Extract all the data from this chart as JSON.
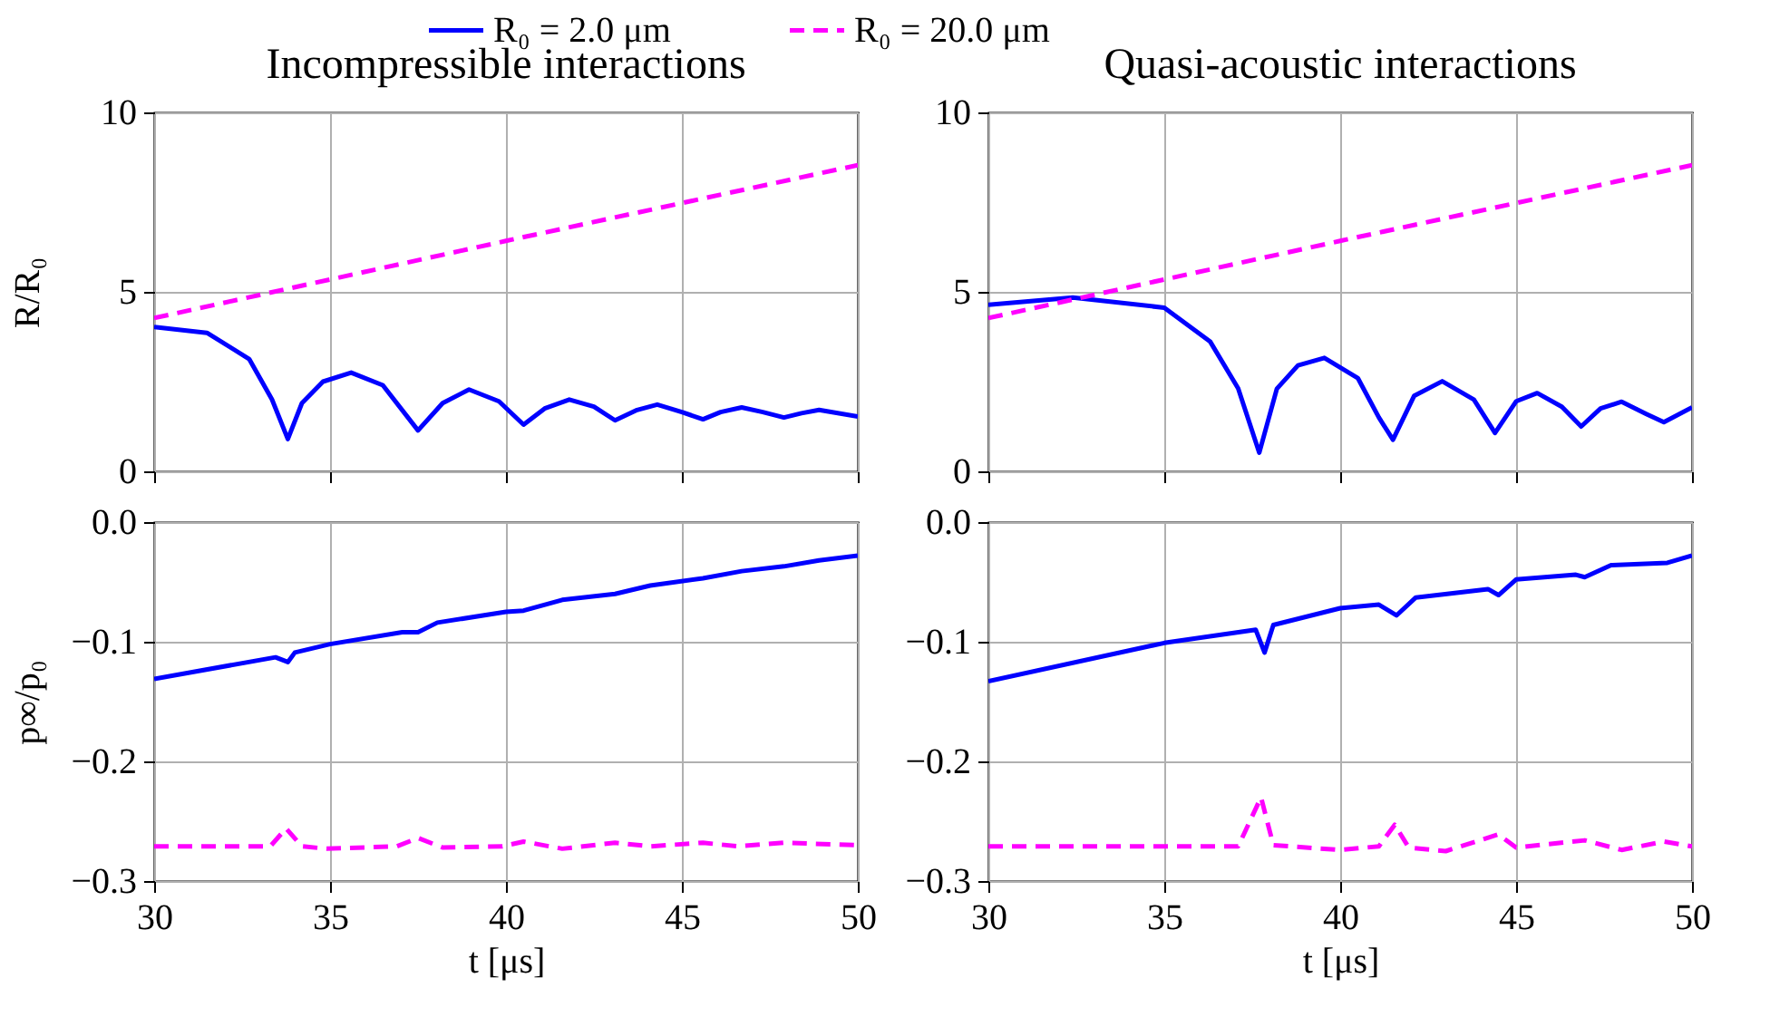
{
  "chart_data": [
    {
      "type": "line",
      "title": "Incompressible interactions",
      "ylabel": "R/R₀",
      "xlim": [
        30,
        50
      ],
      "xticks": [
        30,
        35,
        40,
        45,
        50
      ],
      "ylim": [
        0,
        10
      ],
      "yticks": [
        0,
        5,
        10
      ],
      "grid": true,
      "tick_labels": "y",
      "legend": "top",
      "series": [
        {
          "name": "R₀ = 2.0 μm",
          "color": "#0000ff",
          "line_style": "solid",
          "x": [
            30,
            31.5,
            32.7,
            33.35,
            33.8,
            34.2,
            34.8,
            35.6,
            36.5,
            37.5,
            38.2,
            38.95,
            39.8,
            40.5,
            41.1,
            41.8,
            42.5,
            43.1,
            43.7,
            44.3,
            45,
            45.6,
            46.1,
            46.7,
            47.3,
            47.9,
            48.4,
            48.9,
            50
          ],
          "values": [
            4.02,
            3.86,
            3.13,
            2.0,
            0.9,
            1.9,
            2.5,
            2.75,
            2.4,
            1.14,
            1.9,
            2.28,
            1.95,
            1.3,
            1.75,
            2.0,
            1.8,
            1.42,
            1.7,
            1.86,
            1.65,
            1.45,
            1.65,
            1.78,
            1.65,
            1.5,
            1.62,
            1.71,
            1.53
          ]
        },
        {
          "name": "R₀ = 20.0 μm",
          "color": "#ff00ff",
          "line_style": "dashed",
          "x": [
            30,
            40,
            50
          ],
          "values": [
            4.27,
            6.42,
            8.53
          ]
        }
      ]
    },
    {
      "type": "line",
      "title": "Quasi-acoustic interactions",
      "xlim": [
        30,
        50
      ],
      "xticks": [
        30,
        35,
        40,
        45,
        50
      ],
      "ylim": [
        0,
        10
      ],
      "yticks": [
        0,
        5,
        10
      ],
      "grid": true,
      "tick_labels": "y",
      "series": [
        {
          "name": "R₀ = 2.0 μm",
          "color": "#0000ff",
          "line_style": "solid",
          "x": [
            30,
            32.4,
            35,
            36.3,
            37.1,
            37.7,
            38.2,
            38.8,
            39.55,
            40.5,
            41.1,
            41.5,
            42.1,
            42.9,
            43.8,
            44.4,
            45,
            45.6,
            46.3,
            46.85,
            47.4,
            48.0,
            48.7,
            49.2,
            50
          ],
          "values": [
            4.64,
            4.84,
            4.56,
            3.62,
            2.31,
            0.52,
            2.3,
            2.95,
            3.16,
            2.6,
            1.5,
            0.88,
            2.1,
            2.51,
            2.0,
            1.07,
            1.95,
            2.18,
            1.8,
            1.25,
            1.75,
            1.94,
            1.6,
            1.37,
            1.78
          ]
        },
        {
          "name": "R₀ = 20.0 μm",
          "color": "#ff00ff",
          "line_style": "dashed",
          "x": [
            30,
            40,
            50
          ],
          "values": [
            4.27,
            6.42,
            8.53
          ]
        }
      ]
    },
    {
      "type": "line",
      "xlabel": "t [μs]",
      "ylabel": "p∞/p₀",
      "xlim": [
        30,
        50
      ],
      "xticks": [
        30,
        35,
        40,
        45,
        50
      ],
      "ylim": [
        -0.3,
        0
      ],
      "yticks": [
        {
          "value": -0.3,
          "label": "−0.3"
        },
        {
          "value": -0.2,
          "label": "−0.2"
        },
        {
          "value": -0.1,
          "label": "−0.1"
        },
        {
          "value": 0,
          "label": "0.0"
        }
      ],
      "grid": true,
      "series": [
        {
          "name": "R₀ = 2.0 μm",
          "color": "#0000ff",
          "line_style": "solid",
          "x": [
            30,
            33.45,
            33.8,
            34.0,
            35,
            37.05,
            37.5,
            38.05,
            40,
            40.5,
            41.6,
            43.1,
            44.1,
            45.6,
            46.7,
            47.9,
            48.9,
            50
          ],
          "values": [
            -0.131,
            -0.113,
            -0.117,
            -0.109,
            -0.102,
            -0.092,
            -0.092,
            -0.084,
            -0.075,
            -0.074,
            -0.065,
            -0.06,
            -0.053,
            -0.047,
            -0.041,
            -0.037,
            -0.032,
            -0.028
          ]
        },
        {
          "name": "R₀ = 20.0 μm",
          "color": "#ff00ff",
          "line_style": "dashed",
          "x": [
            30,
            33.3,
            33.75,
            34.2,
            34.9,
            36.9,
            37.5,
            38.2,
            39.9,
            40.5,
            41.6,
            43.1,
            44.1,
            45.6,
            46.6,
            47.9,
            50
          ],
          "values": [
            -0.271,
            -0.271,
            -0.256,
            -0.271,
            -0.273,
            -0.271,
            -0.264,
            -0.272,
            -0.271,
            -0.267,
            -0.273,
            -0.268,
            -0.271,
            -0.268,
            -0.271,
            -0.268,
            -0.27
          ]
        }
      ]
    },
    {
      "type": "line",
      "xlabel": "t [μs]",
      "xlim": [
        30,
        50
      ],
      "xticks": [
        30,
        35,
        40,
        45,
        50
      ],
      "ylim": [
        -0.3,
        0
      ],
      "yticks": [
        {
          "value": -0.3,
          "label": "−0.3"
        },
        {
          "value": -0.2,
          "label": "−0.2"
        },
        {
          "value": -0.1,
          "label": "−0.1"
        },
        {
          "value": 0,
          "label": "0.0"
        }
      ],
      "grid": true,
      "series": [
        {
          "name": "R₀ = 2.0 μm",
          "color": "#0000ff",
          "line_style": "solid",
          "x": [
            30,
            35,
            37.6,
            37.85,
            38.1,
            40,
            41.1,
            41.6,
            42.15,
            44.2,
            44.5,
            45,
            46.7,
            46.95,
            47.7,
            49.3,
            50
          ],
          "values": [
            -0.133,
            -0.101,
            -0.09,
            -0.109,
            -0.086,
            -0.072,
            -0.069,
            -0.078,
            -0.063,
            -0.056,
            -0.061,
            -0.048,
            -0.044,
            -0.046,
            -0.036,
            -0.034,
            -0.028
          ]
        },
        {
          "name": "R₀ = 20.0 μm",
          "color": "#ff00ff",
          "line_style": "dashed",
          "x": [
            30,
            37.1,
            37.75,
            38.1,
            40,
            41.1,
            41.55,
            41.95,
            43,
            44.5,
            45,
            46.95,
            48,
            49.2,
            50
          ],
          "values": [
            -0.271,
            -0.271,
            -0.23,
            -0.27,
            -0.274,
            -0.271,
            -0.253,
            -0.272,
            -0.275,
            -0.261,
            -0.272,
            -0.266,
            -0.274,
            -0.267,
            -0.271
          ]
        }
      ]
    }
  ]
}
